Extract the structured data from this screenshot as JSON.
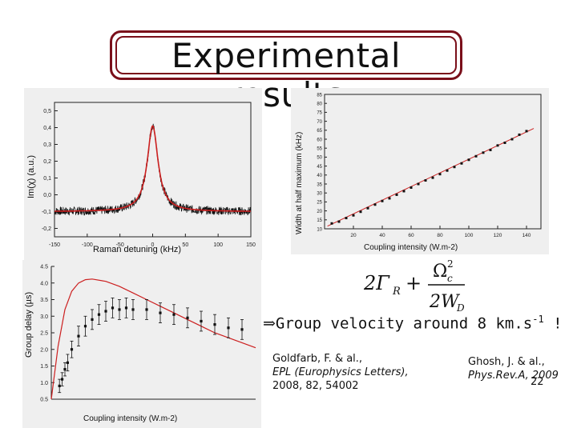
{
  "title": "Experimental results",
  "formula": {
    "lhs": "2Γ",
    "sub_r": "R",
    "plus": "+",
    "num": "Ω",
    "num_sup": "2",
    "num_sub": "c",
    "den": "2W",
    "den_sub": "D"
  },
  "conclusion": {
    "text": "Group velocity around 8 km.s",
    "sup": "-1",
    "tail": " !"
  },
  "references": [
    {
      "line1": "Goldfarb, F. & al.,",
      "line2": "EPL (Europhysics Letters),",
      "line3": "2008, 82, 54002"
    },
    {
      "line1": "Ghosh, J. & al.,",
      "line2": "Phys.Rev.A, 2009"
    }
  ],
  "page_number": "22",
  "colors": {
    "title_border": "#7a0f1a",
    "fit": "#cc1f1f",
    "data": "#111111",
    "panel_bg": "#efefef"
  },
  "chart_data": [
    {
      "type": "line",
      "ylabel": "Im(χ) (a.u.)",
      "xlabel": "Raman detuning (kHz)",
      "xlim": [
        -150,
        150
      ],
      "ylim": [
        -0.25,
        0.55
      ],
      "xticks": [
        "-150",
        "-100",
        "-50",
        "0",
        "50",
        "100",
        "150"
      ],
      "yticks": [
        "-0,2",
        "-0,1",
        "0,0",
        "0,1",
        "0,2",
        "0,3",
        "0,4",
        "0,5"
      ],
      "series": [
        {
          "style": "noisy-data",
          "center": 0,
          "peak": 0.41,
          "offset": -0.1,
          "hwhm": 10
        },
        {
          "style": "fit",
          "center": 0,
          "peak": 0.41,
          "offset": -0.1,
          "hwhm": 10
        }
      ]
    },
    {
      "type": "scatter",
      "ylabel": "Width at half maximum (kHz)",
      "xlabel": "Coupling intensity (W.m-2)",
      "xlim": [
        0,
        150
      ],
      "ylim": [
        10,
        85
      ],
      "xticks": [
        "20",
        "40",
        "60",
        "80",
        "100",
        "120",
        "140"
      ],
      "yticks": [
        "10",
        "15",
        "20",
        "25",
        "30",
        "35",
        "40",
        "45",
        "50",
        "55",
        "60",
        "65",
        "70",
        "75",
        "80",
        "85"
      ],
      "x": [
        5,
        10,
        15,
        20,
        25,
        30,
        35,
        40,
        45,
        50,
        55,
        60,
        65,
        70,
        75,
        80,
        85,
        90,
        95,
        100,
        105,
        110,
        115,
        120,
        125,
        130,
        135,
        140
      ],
      "y": [
        13,
        14,
        16,
        17.5,
        19.5,
        21.5,
        23.5,
        25.5,
        27,
        29,
        31,
        33,
        35,
        37,
        38.5,
        40.5,
        42.5,
        44.5,
        46.5,
        48.5,
        50.5,
        52.5,
        54,
        56.5,
        58,
        60,
        62.5,
        64.5
      ],
      "fit_line": {
        "x": [
          2,
          145
        ],
        "y": [
          11.5,
          66
        ]
      }
    },
    {
      "type": "scatter",
      "ylabel": "Group delay (µs)",
      "xlabel": "Coupling intensity (W.m-2)",
      "xlim": [
        0,
        150
      ],
      "ylim": [
        0.5,
        4.5
      ],
      "yticks": [
        "0.5",
        "1.0",
        "1.5",
        "2.0",
        "2.5",
        "3.0",
        "3.5",
        "4.0",
        "4.5"
      ],
      "x": [
        6,
        8,
        10,
        12,
        15,
        20,
        25,
        30,
        35,
        40,
        45,
        50,
        55,
        60,
        70,
        80,
        90,
        100,
        110,
        120,
        130,
        140
      ],
      "y": [
        0.9,
        1.1,
        1.4,
        1.6,
        2.0,
        2.4,
        2.7,
        2.9,
        3.05,
        3.15,
        3.25,
        3.2,
        3.25,
        3.2,
        3.2,
        3.1,
        3.05,
        2.95,
        2.85,
        2.75,
        2.65,
        2.6
      ],
      "err": [
        0.2,
        0.2,
        0.2,
        0.25,
        0.25,
        0.3,
        0.3,
        0.3,
        0.3,
        0.3,
        0.3,
        0.3,
        0.3,
        0.3,
        0.3,
        0.3,
        0.3,
        0.3,
        0.3,
        0.3,
        0.3,
        0.3
      ],
      "fit_curve": {
        "x": [
          0,
          5,
          10,
          15,
          20,
          25,
          30,
          40,
          50,
          60,
          70,
          80,
          90,
          100,
          110,
          120,
          130,
          140,
          150
        ],
        "y": [
          0.5,
          2.1,
          3.2,
          3.75,
          4.0,
          4.1,
          4.12,
          4.05,
          3.9,
          3.7,
          3.5,
          3.3,
          3.1,
          2.9,
          2.7,
          2.5,
          2.35,
          2.2,
          2.05
        ]
      }
    }
  ]
}
